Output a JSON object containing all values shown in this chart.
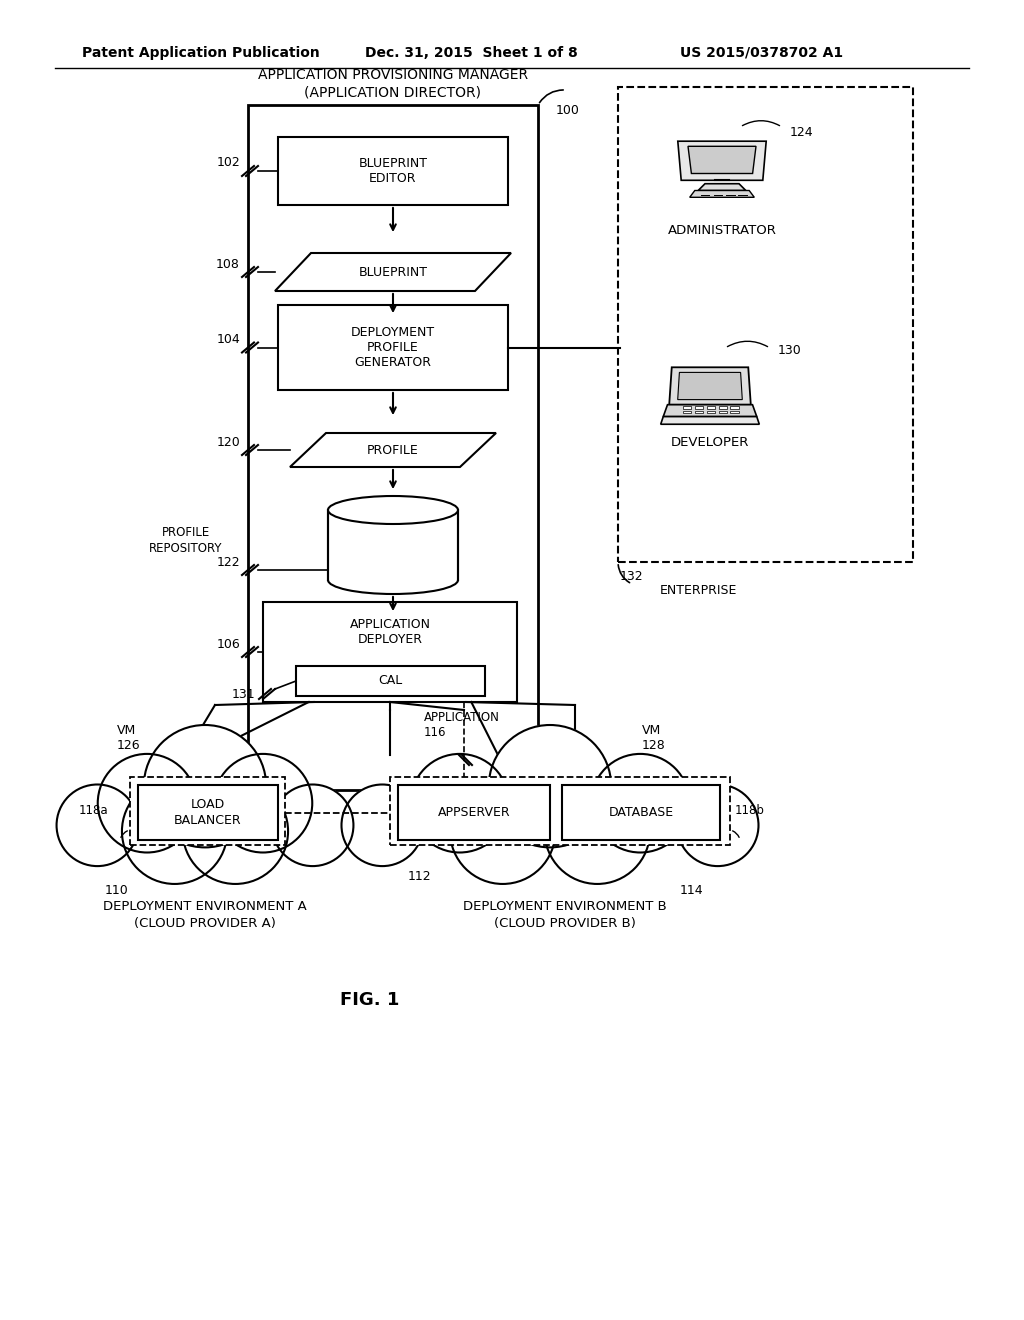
{
  "bg_color": "#ffffff",
  "header_left": "Patent Application Publication",
  "header_mid": "Dec. 31, 2015  Sheet 1 of 8",
  "header_right": "US 2015/0378702 A1",
  "fig_label": "FIG. 1",
  "title_line1": "APPLICATION PROVISIONING MANAGER",
  "title_line2": "(APPLICATION DIRECTOR)",
  "label_100": "100",
  "label_102": "102",
  "label_104": "104",
  "label_106": "106",
  "label_108": "108",
  "label_110": "110",
  "label_112": "112",
  "label_114": "114",
  "label_116": "APPLICATION\n116",
  "label_118a": "118a",
  "label_118b": "118b",
  "label_120": "120",
  "label_122": "122",
  "label_124": "124",
  "label_126": "VM\n126",
  "label_128": "VM\n128",
  "label_130": "130",
  "label_131": "131",
  "label_132": "132",
  "box_blueprint_editor": "BLUEPRINT\nEDITOR",
  "box_blueprint": "BLUEPRINT",
  "box_deployment": "DEPLOYMENT\nPROFILE\nGENERATOR",
  "box_profile": "PROFILE",
  "box_app_deployer": "APPLICATION\nDEPLOYER",
  "box_cal": "CAL",
  "box_load_balancer": "LOAD\nBALANCER",
  "box_appserver": "APPSERVER",
  "box_database": "DATABASE",
  "label_profile_repo_line1": "PROFILE",
  "label_profile_repo_line2": "REPOSITORY",
  "label_administrator": "ADMINISTRATOR",
  "label_developer": "DEVELOPER",
  "label_enterprise": "ENTERPRISE",
  "label_dep_env_a_line1": "DEPLOYMENT ENVIRONMENT A",
  "label_dep_env_a_line2": "(CLOUD PROVIDER A)",
  "label_dep_env_b_line1": "DEPLOYMENT ENVIRONMENT B",
  "label_dep_env_b_line2": "(CLOUD PROVIDER B)"
}
